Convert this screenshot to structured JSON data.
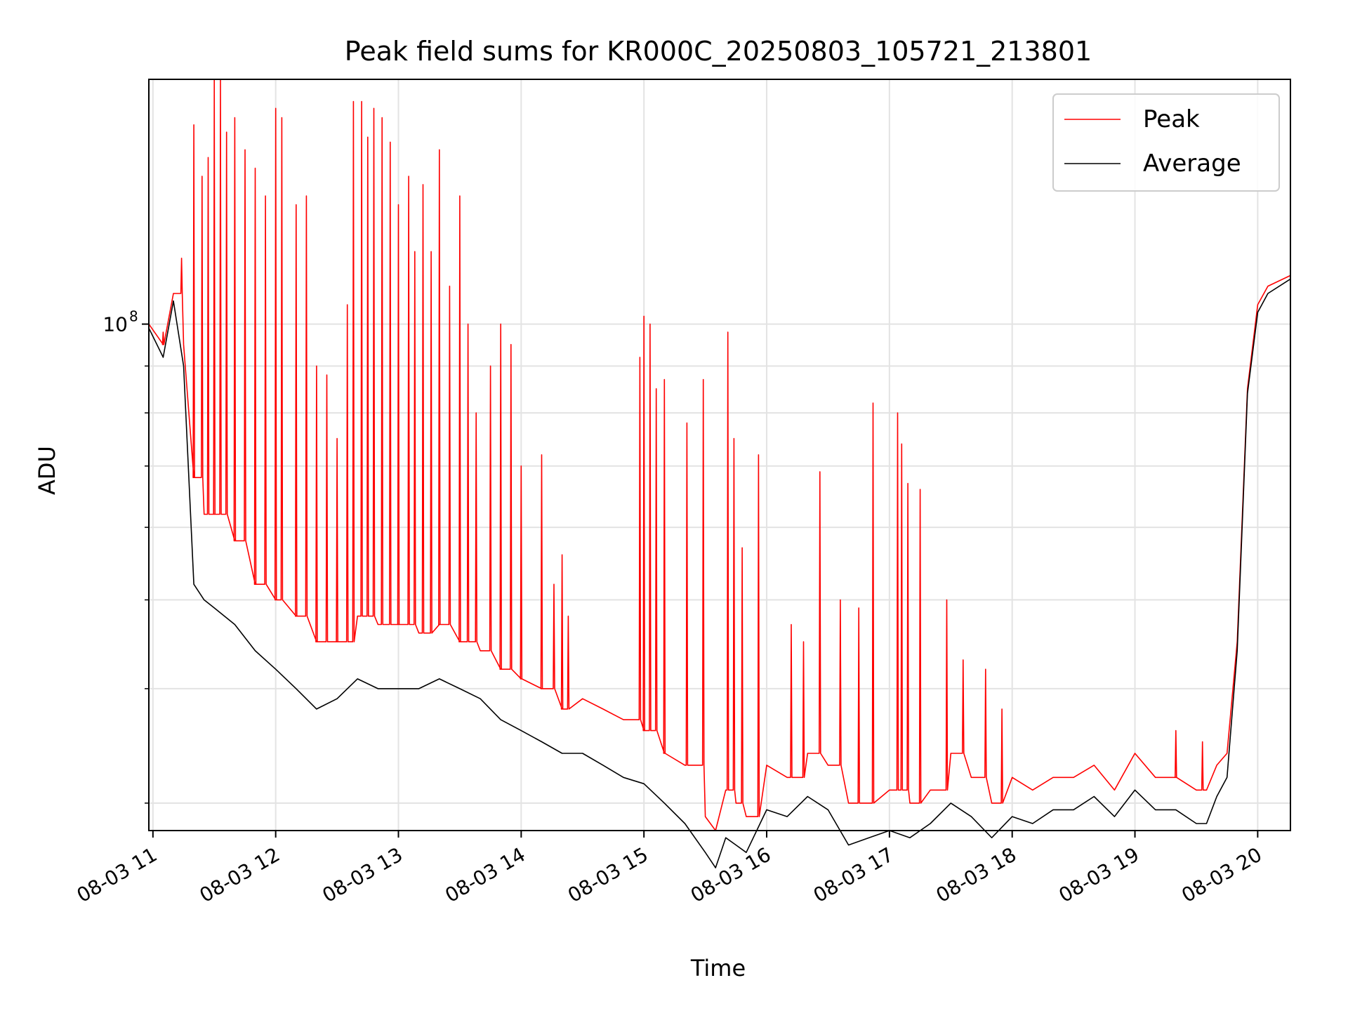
{
  "chart_data": {
    "type": "line",
    "title": "Peak field sums for KR000C_20250803_105721_213801",
    "xlabel": "Time",
    "ylabel": "ADU",
    "y_scale": "log",
    "x_ticks": [
      "08-03 11",
      "08-03 12",
      "08-03 13",
      "08-03 14",
      "08-03 15",
      "08-03 16",
      "08-03 17",
      "08-03 18",
      "08-03 19",
      "08-03 20"
    ],
    "y_tick_label": {
      "base": "10",
      "exponent": "8",
      "value": 100000000
    },
    "xlim": [
      "08-03 10:58",
      "08-03 20:16"
    ],
    "ylim": [
      28000000,
      185000000
    ],
    "grid": true,
    "legend_position": "top-right",
    "colors": {
      "peak": "#ff0000",
      "average": "#000000"
    },
    "series": [
      {
        "name": "Peak",
        "color": "#ff0000",
        "x": [
          "08-03 10:58",
          "08-03 11:05",
          "08-03 11:10",
          "08-03 11:15",
          "08-03 11:20",
          "08-03 11:25",
          "08-03 11:30",
          "08-03 11:40",
          "08-03 11:50",
          "08-03 12:00",
          "08-03 12:10",
          "08-03 12:20",
          "08-03 12:30",
          "08-03 12:40",
          "08-03 12:50",
          "08-03 13:00",
          "08-03 13:10",
          "08-03 13:20",
          "08-03 13:30",
          "08-03 13:40",
          "08-03 13:50",
          "08-03 14:00",
          "08-03 14:10",
          "08-03 14:20",
          "08-03 14:30",
          "08-03 14:40",
          "08-03 14:50",
          "08-03 15:00",
          "08-03 15:10",
          "08-03 15:20",
          "08-03 15:30",
          "08-03 15:35",
          "08-03 15:40",
          "08-03 15:45",
          "08-03 15:50",
          "08-03 16:00",
          "08-03 16:10",
          "08-03 16:20",
          "08-03 16:30",
          "08-03 16:40",
          "08-03 16:50",
          "08-03 17:00",
          "08-03 17:10",
          "08-03 17:20",
          "08-03 17:30",
          "08-03 17:40",
          "08-03 17:50",
          "08-03 18:00",
          "08-03 18:10",
          "08-03 18:20",
          "08-03 18:30",
          "08-03 18:40",
          "08-03 18:50",
          "08-03 19:00",
          "08-03 19:10",
          "08-03 19:20",
          "08-03 19:30",
          "08-03 19:35",
          "08-03 19:40",
          "08-03 19:45",
          "08-03 19:50",
          "08-03 19:55",
          "08-03 20:00",
          "08-03 20:05",
          "08-03 20:16"
        ],
        "values": [
          100000000,
          95000000,
          108000000,
          95000000,
          68000000,
          62000000,
          62000000,
          58000000,
          52000000,
          50000000,
          48000000,
          45000000,
          45000000,
          48000000,
          47000000,
          47000000,
          46000000,
          47000000,
          45000000,
          44000000,
          42000000,
          41000000,
          40000000,
          38000000,
          39000000,
          38000000,
          37000000,
          36000000,
          34000000,
          33000000,
          29000000,
          28000000,
          31000000,
          30000000,
          29000000,
          33000000,
          32000000,
          34000000,
          33000000,
          30000000,
          30000000,
          31000000,
          30000000,
          31000000,
          34000000,
          32000000,
          30000000,
          32000000,
          31000000,
          32000000,
          32000000,
          33000000,
          31000000,
          34000000,
          32000000,
          32000000,
          31000000,
          31000000,
          33000000,
          34000000,
          45000000,
          85000000,
          105000000,
          110000000,
          113000000
        ],
        "spikes": [
          {
            "x": "08-03 11:05",
            "value": 98000000
          },
          {
            "x": "08-03 11:14",
            "value": 118000000
          },
          {
            "x": "08-03 11:20",
            "value": 165000000
          },
          {
            "x": "08-03 11:24",
            "value": 145000000
          },
          {
            "x": "08-03 11:27",
            "value": 152000000
          },
          {
            "x": "08-03 11:30",
            "value": 185000000
          },
          {
            "x": "08-03 11:33",
            "value": 185000000
          },
          {
            "x": "08-03 11:36",
            "value": 162000000
          },
          {
            "x": "08-03 11:40",
            "value": 168000000
          },
          {
            "x": "08-03 11:45",
            "value": 155000000
          },
          {
            "x": "08-03 11:50",
            "value": 148000000
          },
          {
            "x": "08-03 11:55",
            "value": 138000000
          },
          {
            "x": "08-03 12:00",
            "value": 172000000
          },
          {
            "x": "08-03 12:03",
            "value": 168000000
          },
          {
            "x": "08-03 12:10",
            "value": 135000000
          },
          {
            "x": "08-03 12:15",
            "value": 138000000
          },
          {
            "x": "08-03 12:20",
            "value": 90000000
          },
          {
            "x": "08-03 12:25",
            "value": 88000000
          },
          {
            "x": "08-03 12:30",
            "value": 75000000
          },
          {
            "x": "08-03 12:35",
            "value": 105000000
          },
          {
            "x": "08-03 12:38",
            "value": 175000000
          },
          {
            "x": "08-03 12:42",
            "value": 175000000
          },
          {
            "x": "08-03 12:45",
            "value": 160000000
          },
          {
            "x": "08-03 12:48",
            "value": 172000000
          },
          {
            "x": "08-03 12:52",
            "value": 168000000
          },
          {
            "x": "08-03 12:56",
            "value": 158000000
          },
          {
            "x": "08-03 13:00",
            "value": 135000000
          },
          {
            "x": "08-03 13:05",
            "value": 145000000
          },
          {
            "x": "08-03 13:08",
            "value": 120000000
          },
          {
            "x": "08-03 13:12",
            "value": 142000000
          },
          {
            "x": "08-03 13:16",
            "value": 120000000
          },
          {
            "x": "08-03 13:20",
            "value": 155000000
          },
          {
            "x": "08-03 13:25",
            "value": 110000000
          },
          {
            "x": "08-03 13:30",
            "value": 138000000
          },
          {
            "x": "08-03 13:34",
            "value": 100000000
          },
          {
            "x": "08-03 13:38",
            "value": 80000000
          },
          {
            "x": "08-03 13:45",
            "value": 90000000
          },
          {
            "x": "08-03 13:50",
            "value": 100000000
          },
          {
            "x": "08-03 13:55",
            "value": 95000000
          },
          {
            "x": "08-03 14:00",
            "value": 70000000
          },
          {
            "x": "08-03 14:10",
            "value": 72000000
          },
          {
            "x": "08-03 14:16",
            "value": 52000000
          },
          {
            "x": "08-03 14:20",
            "value": 56000000
          },
          {
            "x": "08-03 14:23",
            "value": 48000000
          },
          {
            "x": "08-03 14:58",
            "value": 92000000
          },
          {
            "x": "08-03 15:00",
            "value": 102000000
          },
          {
            "x": "08-03 15:03",
            "value": 100000000
          },
          {
            "x": "08-03 15:06",
            "value": 85000000
          },
          {
            "x": "08-03 15:10",
            "value": 87000000
          },
          {
            "x": "08-03 15:21",
            "value": 78000000
          },
          {
            "x": "08-03 15:29",
            "value": 87000000
          },
          {
            "x": "08-03 15:41",
            "value": 98000000
          },
          {
            "x": "08-03 15:44",
            "value": 75000000
          },
          {
            "x": "08-03 15:48",
            "value": 57000000
          },
          {
            "x": "08-03 15:56",
            "value": 72000000
          },
          {
            "x": "08-03 16:12",
            "value": 47000000
          },
          {
            "x": "08-03 16:18",
            "value": 45000000
          },
          {
            "x": "08-03 16:26",
            "value": 69000000
          },
          {
            "x": "08-03 16:36",
            "value": 50000000
          },
          {
            "x": "08-03 16:45",
            "value": 49000000
          },
          {
            "x": "08-03 16:52",
            "value": 82000000
          },
          {
            "x": "08-03 17:04",
            "value": 80000000
          },
          {
            "x": "08-03 17:06",
            "value": 74000000
          },
          {
            "x": "08-03 17:09",
            "value": 67000000
          },
          {
            "x": "08-03 17:15",
            "value": 66000000
          },
          {
            "x": "08-03 17:28",
            "value": 50000000
          },
          {
            "x": "08-03 17:36",
            "value": 43000000
          },
          {
            "x": "08-03 17:47",
            "value": 42000000
          },
          {
            "x": "08-03 17:55",
            "value": 38000000
          },
          {
            "x": "08-03 19:20",
            "value": 36000000
          },
          {
            "x": "08-03 19:33",
            "value": 35000000
          }
        ]
      },
      {
        "name": "Average",
        "color": "#000000",
        "x": [
          "08-03 10:58",
          "08-03 11:05",
          "08-03 11:10",
          "08-03 11:15",
          "08-03 11:20",
          "08-03 11:25",
          "08-03 11:30",
          "08-03 11:40",
          "08-03 11:50",
          "08-03 12:00",
          "08-03 12:10",
          "08-03 12:20",
          "08-03 12:30",
          "08-03 12:40",
          "08-03 12:50",
          "08-03 13:00",
          "08-03 13:10",
          "08-03 13:20",
          "08-03 13:30",
          "08-03 13:40",
          "08-03 13:50",
          "08-03 14:00",
          "08-03 14:10",
          "08-03 14:20",
          "08-03 14:30",
          "08-03 14:40",
          "08-03 14:50",
          "08-03 15:00",
          "08-03 15:10",
          "08-03 15:20",
          "08-03 15:30",
          "08-03 15:35",
          "08-03 15:40",
          "08-03 15:45",
          "08-03 15:50",
          "08-03 16:00",
          "08-03 16:10",
          "08-03 16:20",
          "08-03 16:30",
          "08-03 16:40",
          "08-03 16:50",
          "08-03 17:00",
          "08-03 17:10",
          "08-03 17:20",
          "08-03 17:30",
          "08-03 17:40",
          "08-03 17:50",
          "08-03 18:00",
          "08-03 18:10",
          "08-03 18:20",
          "08-03 18:30",
          "08-03 18:40",
          "08-03 18:50",
          "08-03 19:00",
          "08-03 19:10",
          "08-03 19:20",
          "08-03 19:30",
          "08-03 19:35",
          "08-03 19:40",
          "08-03 19:45",
          "08-03 19:50",
          "08-03 19:55",
          "08-03 20:00",
          "08-03 20:05",
          "08-03 20:16"
        ],
        "values": [
          99000000,
          92000000,
          106000000,
          90000000,
          52000000,
          50000000,
          49000000,
          47000000,
          44000000,
          42000000,
          40000000,
          38000000,
          39000000,
          41000000,
          40000000,
          40000000,
          40000000,
          41000000,
          40000000,
          39000000,
          37000000,
          36000000,
          35000000,
          34000000,
          34000000,
          33000000,
          32000000,
          31500000,
          30000000,
          28500000,
          26500000,
          25500000,
          27500000,
          27000000,
          26500000,
          29500000,
          29000000,
          30500000,
          29500000,
          27000000,
          27500000,
          28000000,
          27500000,
          28500000,
          30000000,
          29000000,
          27500000,
          29000000,
          28500000,
          29500000,
          29500000,
          30500000,
          29000000,
          31000000,
          29500000,
          29500000,
          28500000,
          28500000,
          30500000,
          32000000,
          44000000,
          84000000,
          103000000,
          108000000,
          112000000
        ]
      }
    ]
  }
}
